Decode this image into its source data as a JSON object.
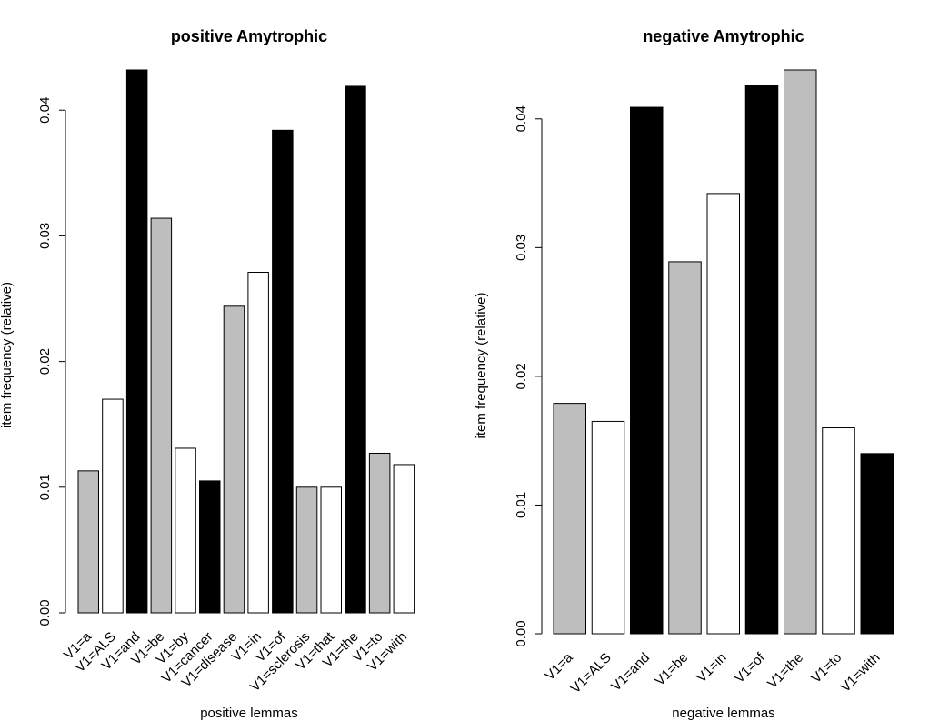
{
  "chart_data": [
    {
      "type": "bar",
      "title": "positive Amytrophic",
      "xlabel": "positive lemmas",
      "ylabel": "item frequency (relative)",
      "ylim": [
        0,
        0.043
      ],
      "yticks": [
        "0.00",
        "0.01",
        "0.02",
        "0.03",
        "0.04"
      ],
      "grid": false,
      "categories": [
        "V1=a",
        "V1=ALS",
        "V1=and",
        "V1=be",
        "V1=by",
        "V1=cancer",
        "V1=disease",
        "V1=in",
        "V1=of",
        "V1=sclerosis",
        "V1=that",
        "V1=the",
        "V1=to",
        "V1=with"
      ],
      "values": [
        0.0113,
        0.017,
        0.0432,
        0.0314,
        0.0131,
        0.0105,
        0.0244,
        0.0271,
        0.0384,
        0.01,
        0.01,
        0.0419,
        0.0127,
        0.0118
      ],
      "colors": [
        "#bebebe",
        "#ffffff",
        "#000000",
        "#bebebe",
        "#ffffff",
        "#000000",
        "#bebebe",
        "#ffffff",
        "#000000",
        "#bebebe",
        "#ffffff",
        "#000000",
        "#bebebe",
        "#ffffff"
      ]
    },
    {
      "type": "bar",
      "title": "negative Amytrophic",
      "xlabel": "negative lemmas",
      "ylabel": "item frequency (relative)",
      "ylim": [
        0,
        0.044
      ],
      "yticks": [
        "0.00",
        "0.01",
        "0.02",
        "0.03",
        "0.04"
      ],
      "grid": false,
      "categories": [
        "V1=a",
        "V1=ALS",
        "V1=and",
        "V1=be",
        "V1=in",
        "V1=of",
        "V1=the",
        "V1=to",
        "V1=with"
      ],
      "values": [
        0.0179,
        0.0165,
        0.0409,
        0.0289,
        0.0342,
        0.0426,
        0.0438,
        0.016,
        0.014
      ],
      "colors": [
        "#bebebe",
        "#ffffff",
        "#000000",
        "#bebebe",
        "#ffffff",
        "#000000",
        "#bebebe",
        "#ffffff",
        "#000000"
      ]
    }
  ]
}
